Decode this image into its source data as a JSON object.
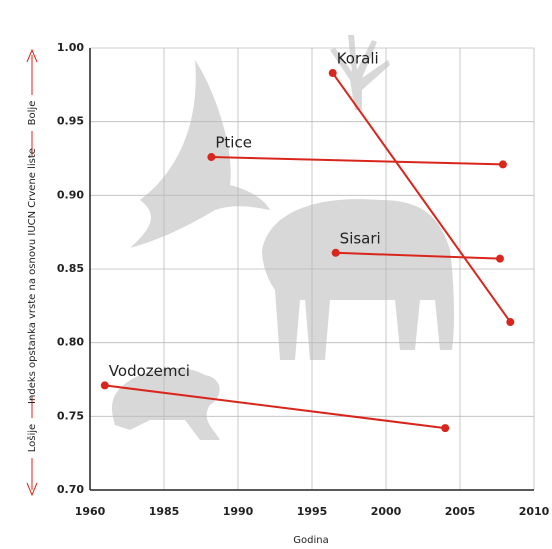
{
  "chart_data": {
    "type": "line",
    "x_label": "Godina",
    "y_label": "Indeks opstanka vrste na osnovu IUCN Crvene liste",
    "y_low_label": "Lošije",
    "y_high_label": "Bolje",
    "xlim": [
      1960,
      2010
    ],
    "xticks": [
      1960,
      1985,
      1990,
      1995,
      2000,
      2005,
      2010
    ],
    "ylim": [
      0.7,
      1.0
    ],
    "yticks": [
      {
        "value": 0.7,
        "label": "0.70"
      },
      0.75,
      {
        "value": 0.8,
        "label": "0.80"
      },
      0.85,
      {
        "value": 0.9,
        "label": "0.90"
      },
      0.95,
      {
        "value": 1.0,
        "label": "1.00"
      }
    ],
    "grid": true,
    "series": [
      {
        "name": "Korali",
        "color": "#d9261c",
        "x": [
          1996.4,
          2008.4
        ],
        "values": [
          0.983,
          0.814
        ]
      },
      {
        "name": "Ptice",
        "color": "#d9261c",
        "x": [
          1988.2,
          2007.9
        ],
        "values": [
          0.926,
          0.921
        ]
      },
      {
        "name": "Sisari",
        "color": "#d9261c",
        "x": [
          1996.6,
          2007.7
        ],
        "values": [
          0.861,
          0.857
        ]
      },
      {
        "name": "Vodozemci",
        "color": "#d9261c",
        "x": [
          1965,
          2004
        ],
        "values": [
          0.771,
          0.742
        ]
      }
    ]
  }
}
